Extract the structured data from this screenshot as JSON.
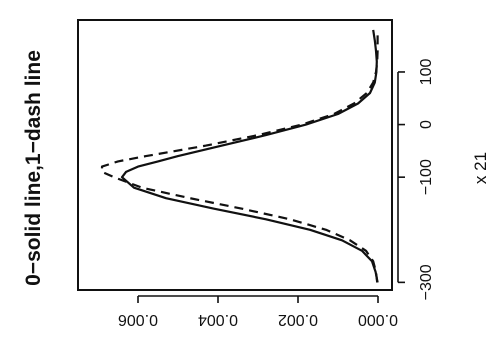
{
  "chart_data": {
    "type": "line",
    "title": "0−solid line,1−dash line",
    "xlabel": "x 21",
    "ylabel": "",
    "x_ticks": [
      "−300",
      "−100",
      "0",
      "100"
    ],
    "x_tick_values": [
      -300,
      -100,
      0,
      100
    ],
    "y_ticks": [
      "0.000",
      "0.002",
      "0.004",
      "0.006"
    ],
    "y_tick_values": [
      0,
      0.002,
      0.004,
      0.006
    ],
    "xlim": [
      -305,
      195
    ],
    "ylim": [
      -0.0001,
      0.0074
    ],
    "series": [
      {
        "style": "solid",
        "x": [
          -300,
          -280,
          -260,
          -240,
          -220,
          -200,
          -180,
          -160,
          -140,
          -120,
          -100,
          -90,
          -80,
          -70,
          -60,
          -40,
          -20,
          0,
          20,
          40,
          60,
          80,
          100,
          120,
          140,
          160,
          180
        ],
        "values": [
          1e-05,
          6e-05,
          0.00015,
          0.0004,
          0.0009,
          0.0017,
          0.0028,
          0.0041,
          0.0053,
          0.0061,
          0.0064,
          0.0063,
          0.006,
          0.0055,
          0.005,
          0.0039,
          0.0028,
          0.0018,
          0.001,
          0.0005,
          0.0002,
          8e-05,
          4e-05,
          3e-05,
          5e-05,
          8e-05,
          0.00012
        ]
      },
      {
        "style": "dashed",
        "x": [
          -300,
          -280,
          -260,
          -240,
          -220,
          -200,
          -180,
          -160,
          -140,
          -120,
          -100,
          -90,
          -80,
          -70,
          -60,
          -40,
          -20,
          0,
          20,
          40,
          60,
          80,
          100,
          120,
          140,
          160,
          180
        ],
        "values": [
          2e-05,
          5e-05,
          0.00012,
          0.0003,
          0.0007,
          0.0013,
          0.0022,
          0.0034,
          0.0047,
          0.0059,
          0.0066,
          0.0069,
          0.0069,
          0.0065,
          0.0058,
          0.0043,
          0.003,
          0.0019,
          0.0011,
          0.0006,
          0.00028,
          0.00012,
          5e-05,
          2e-05,
          1e-05,
          1e-05,
          1e-05
        ]
      }
    ]
  }
}
